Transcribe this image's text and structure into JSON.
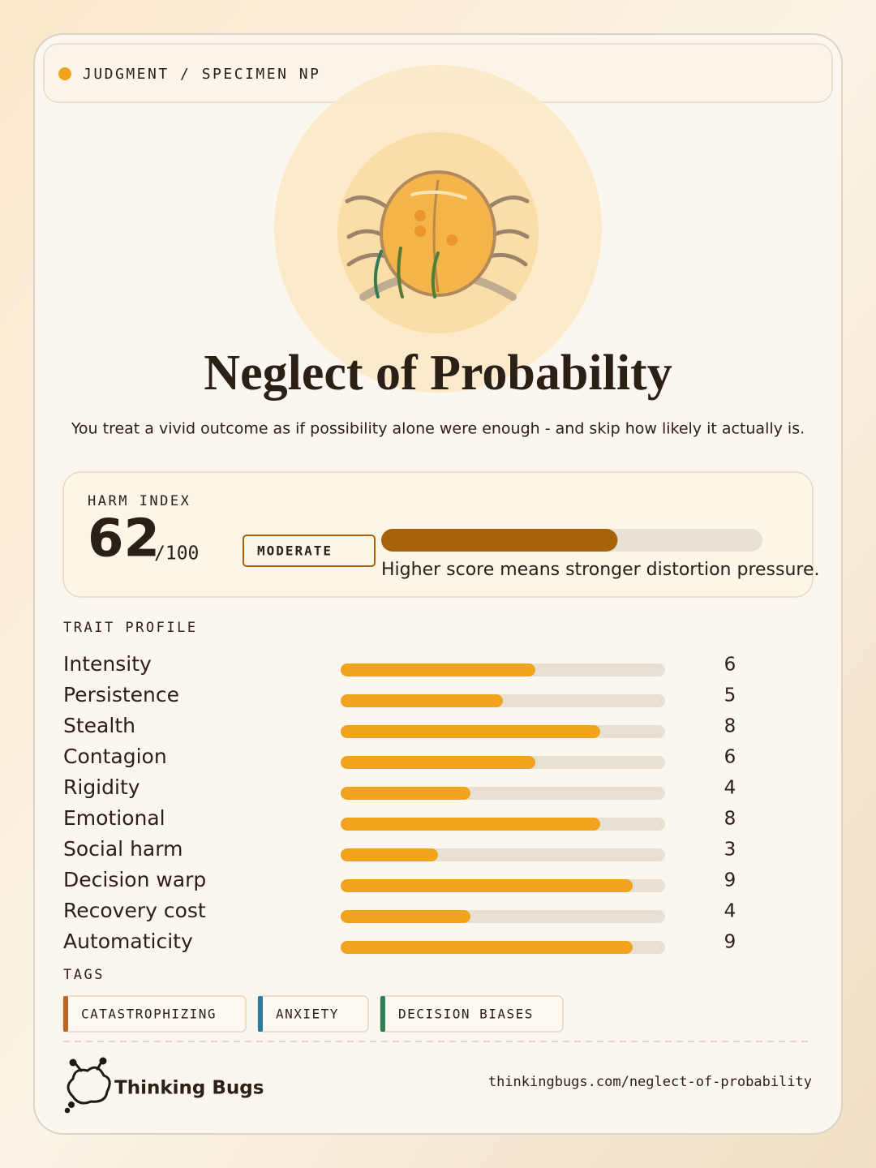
{
  "header": {
    "label": "JUDGMENT / SPECIMEN NP"
  },
  "title": "Neglect of Probability",
  "subtitle": "You treat a vivid outcome as if possibility alone were enough - and skip how likely it actually is.",
  "harm": {
    "label": "HARM INDEX",
    "score": 62,
    "out_of": {
      "value": 100,
      "label": "/100"
    },
    "level": "MODERATE",
    "note": "Higher score means stronger distortion pressure.",
    "color": "#a5640a"
  },
  "traits": {
    "label": "TRAIT PROFILE",
    "xlim": [
      0,
      10
    ],
    "color": "#f2a31e",
    "items": [
      {
        "name": "Intensity",
        "value": 6
      },
      {
        "name": "Persistence",
        "value": 5
      },
      {
        "name": "Stealth",
        "value": 8
      },
      {
        "name": "Contagion",
        "value": 6
      },
      {
        "name": "Rigidity",
        "value": 4
      },
      {
        "name": "Emotional",
        "value": 8
      },
      {
        "name": "Social harm",
        "value": 3
      },
      {
        "name": "Decision warp",
        "value": 9
      },
      {
        "name": "Recovery cost",
        "value": 4
      },
      {
        "name": "Automaticity",
        "value": 9
      }
    ]
  },
  "tags": {
    "label": "TAGS",
    "items": [
      {
        "text": "CATASTROPHIZING",
        "color": "#c0661f"
      },
      {
        "text": "ANXIETY",
        "color": "#2a7ba0"
      },
      {
        "text": "DECISION BIASES",
        "color": "#2e7d55"
      }
    ]
  },
  "footer": {
    "brand": "Thinking Bugs",
    "url": "thinkingbugs.com/neglect-of-probability"
  }
}
